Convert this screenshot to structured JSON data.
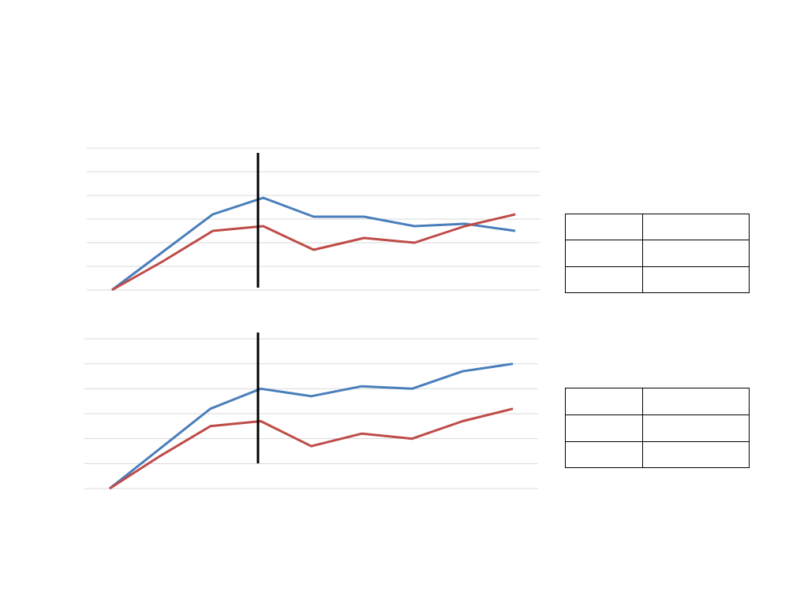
{
  "chart_data": [
    {
      "type": "line",
      "categories": [
        null,
        null,
        null,
        null,
        null,
        null,
        null,
        null,
        null
      ],
      "series": [
        {
          "color": "#4a7ebb",
          "values": [
            0,
            1.6,
            3.2,
            3.9,
            3.1,
            3.1,
            2.7,
            2.8,
            2.5
          ]
        },
        {
          "color": "#be4b48",
          "values": [
            0,
            1.2,
            2.5,
            2.7,
            1.7,
            2.2,
            2.0,
            2.7,
            3.2
          ]
        }
      ],
      "ylim": [
        0,
        6
      ],
      "yticks": [
        0,
        1,
        2,
        3,
        4,
        5,
        6
      ],
      "grid": true
    },
    {
      "type": "line",
      "categories": [
        null,
        null,
        null,
        null,
        null,
        null,
        null,
        null,
        null
      ],
      "series": [
        {
          "color": "#4a7ebb",
          "values": [
            0,
            1.6,
            3.2,
            4.0,
            3.7,
            4.1,
            4.0,
            4.7,
            5.0
          ]
        },
        {
          "color": "#be4b48",
          "values": [
            0,
            1.3,
            2.5,
            2.7,
            1.7,
            2.2,
            2.0,
            2.7,
            3.2
          ]
        }
      ],
      "ylim": [
        0,
        6
      ],
      "yticks": [
        0,
        1,
        2,
        3,
        4,
        5,
        6
      ],
      "grid": true
    }
  ]
}
